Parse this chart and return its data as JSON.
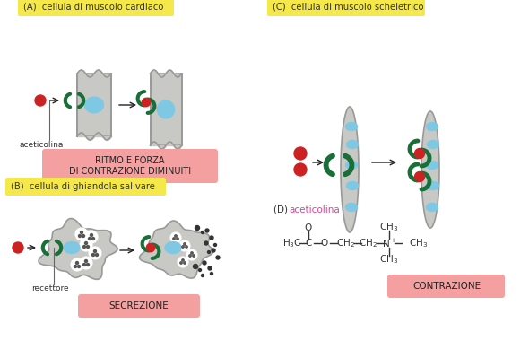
{
  "bg_color": "#ffffff",
  "label_A": "cellula di muscolo cardiaco",
  "label_B": "cellula di ghiandola salivare",
  "label_C": "cellula di muscolo scheletrico",
  "label_D_prefix": "(D) ",
  "label_D_colored": "aceticolina",
  "box_label_color": "#f5e84a",
  "result_A": "RITMO E FORZA\nDI CONTRAZIONE DIMINUITI",
  "result_B": "SECREZIONE",
  "result_C": "CONTRAZIONE",
  "result_box_color": "#f4a0a0",
  "cell_color": "#c8c8c4",
  "cell_edge": "#999999",
  "receptor_color": "#1a6e38",
  "ligand_color": "#cc2222",
  "nucleus_color": "#7ec8e3",
  "arrow_color": "#222222",
  "aceticolina_label": "aceticolina",
  "recettore_label": "recettore",
  "text_color": "#333333",
  "pink_text": "#e0409a"
}
